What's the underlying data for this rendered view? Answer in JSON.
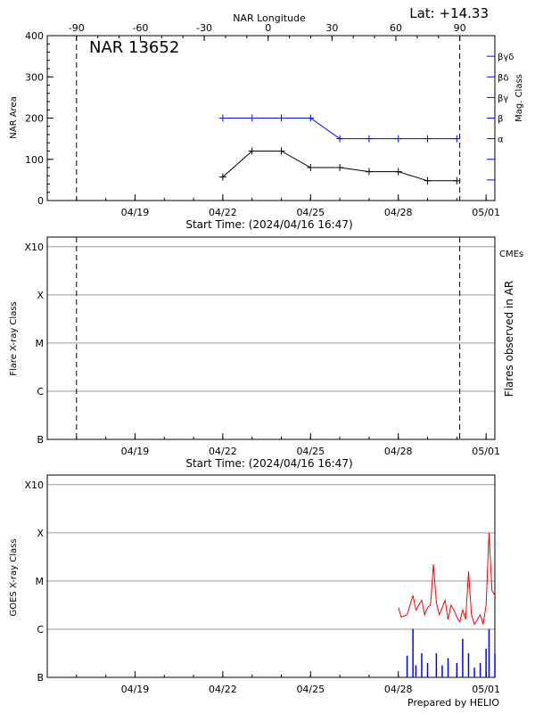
{
  "header": {
    "latitude": "Lat: +14.33",
    "ar_label": "NAR 13652",
    "credit": "Prepared by HELIO"
  },
  "colors": {
    "black": "#000000",
    "blue": "#0000ff",
    "red": "#ff0000",
    "grid": "#999999"
  },
  "chart_data": [
    {
      "type": "line",
      "name": "panel-area",
      "title": "NAR 13652",
      "top_axis": {
        "label": "NAR Longitude",
        "ticks": [
          "-90",
          "-60",
          "-30",
          "0",
          "30",
          "60",
          "90"
        ],
        "values": [
          -90,
          -60,
          -30,
          0,
          30,
          60,
          90
        ]
      },
      "xlabel": "Start Time: (2024/04/16 16:47)",
      "x_ticks": [
        "04/19",
        "04/22",
        "04/25",
        "04/28",
        "05/01"
      ],
      "x_tick_days": [
        3,
        6,
        9,
        12,
        15
      ],
      "xlim_days": [
        0,
        15.3
      ],
      "ylabel": "NAR Area",
      "ylim": [
        0,
        400
      ],
      "y_ticks": [
        "0",
        "100",
        "200",
        "300",
        "400"
      ],
      "y_tick_values": [
        0,
        100,
        200,
        300,
        400
      ],
      "right_axis": {
        "label": "Mag. Class",
        "ticks": [
          "α",
          "β",
          "βγ",
          "βδ",
          "βγδ"
        ],
        "tick_values": [
          150,
          200,
          250,
          300,
          350
        ],
        "extra_tick_values": [
          50,
          100
        ]
      },
      "dashed_lines_days": [
        1,
        14.1
      ],
      "series": [
        {
          "role": "area",
          "color": "#000000",
          "x": [
            6,
            7,
            8,
            9,
            10,
            11,
            12,
            13,
            14
          ],
          "y": [
            57,
            120,
            120,
            80,
            80,
            70,
            70,
            48,
            48
          ]
        },
        {
          "role": "mag-class",
          "color": "#0000ff",
          "x": [
            6,
            7,
            8,
            9,
            10,
            11,
            12,
            13,
            14
          ],
          "y": [
            200,
            200,
            200,
            200,
            150,
            150,
            150,
            150,
            150
          ]
        }
      ]
    },
    {
      "type": "line",
      "name": "panel-flares",
      "xlabel": "Start Time: (2024/04/16 16:47)",
      "x_ticks": [
        "04/19",
        "04/22",
        "04/25",
        "04/28",
        "05/01"
      ],
      "x_tick_days": [
        3,
        6,
        9,
        12,
        15
      ],
      "ylabel": "Flare X-ray Class",
      "y_ticks": [
        "B",
        "C",
        "M",
        "X",
        "X10"
      ],
      "y_tick_levels": [
        0,
        1,
        2,
        3,
        4
      ],
      "grid": true,
      "right_label": "Flares observed in AR",
      "cme_label": "CMEs",
      "dashed_lines_days": [
        1,
        14.1
      ],
      "series": []
    },
    {
      "type": "line",
      "name": "panel-goes",
      "xlabel": "",
      "x_ticks": [
        "04/19",
        "04/22",
        "04/25",
        "04/28",
        "05/01"
      ],
      "x_tick_days": [
        3,
        6,
        9,
        12,
        15
      ],
      "ylabel": "GOES X-ray Class",
      "y_ticks": [
        "B",
        "C",
        "M",
        "X",
        "X10"
      ],
      "y_tick_levels": [
        0,
        1,
        2,
        3,
        4
      ],
      "grid": true,
      "series": [
        {
          "role": "long-channel",
          "color": "#ff0000",
          "x": [
            12,
            12.1,
            12.3,
            12.5,
            12.6,
            12.8,
            12.9,
            13.0,
            13.1,
            13.2,
            13.3,
            13.4,
            13.5,
            13.6,
            13.7,
            13.8,
            13.9,
            14.0,
            14.1,
            14.2,
            14.3,
            14.4,
            14.5,
            14.6,
            14.7,
            14.8,
            14.9,
            15.0,
            15.1,
            15.2,
            15.3
          ],
          "y": [
            1.45,
            1.25,
            1.3,
            1.7,
            1.4,
            1.6,
            1.3,
            1.45,
            1.5,
            2.35,
            1.55,
            1.3,
            1.45,
            1.6,
            1.2,
            1.5,
            1.4,
            1.25,
            1.15,
            1.4,
            1.2,
            2.2,
            1.3,
            1.1,
            1.2,
            1.3,
            1.1,
            1.5,
            3.0,
            1.8,
            1.7
          ]
        },
        {
          "role": "short-channel",
          "color": "#0000ff",
          "x": [
            12.3,
            12.5,
            12.6,
            12.8,
            13.0,
            13.3,
            13.5,
            13.7,
            14.0,
            14.2,
            14.4,
            14.6,
            14.8,
            15.0,
            15.1,
            15.3
          ],
          "y": [
            0.45,
            1.0,
            0.25,
            0.5,
            0.3,
            0.5,
            0.25,
            0.4,
            0.3,
            0.8,
            0.5,
            0.2,
            0.3,
            0.6,
            1.0,
            0.5
          ]
        }
      ]
    }
  ]
}
